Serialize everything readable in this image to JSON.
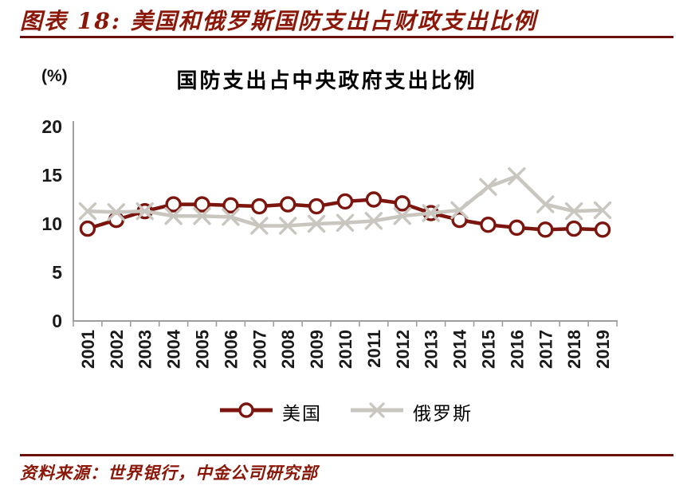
{
  "figure": {
    "caption": "图表 18: 美国和俄罗斯国防支出占财政支出比例",
    "source": "资料来源：世界银行，中金公司研究部"
  },
  "colors": {
    "accent_red": "#7c150e",
    "caption_red": "#8b1708",
    "rule_red": "#6b0f0b",
    "axis_gray": "#9e9e9e",
    "russia_gray": "#c9c6bf",
    "label_black": "#1a1a1a"
  },
  "chart_data": {
    "type": "line",
    "title": "国防支出占中央政府支出比例",
    "unit_label": "(%)",
    "xlabel": "",
    "ylabel": "(%)",
    "categories": [
      2001,
      2002,
      2003,
      2004,
      2005,
      2006,
      2007,
      2008,
      2009,
      2010,
      2011,
      2012,
      2013,
      2014,
      2015,
      2016,
      2017,
      2018,
      2019
    ],
    "ylim": [
      0,
      20
    ],
    "yticks": [
      0,
      5,
      10,
      15,
      20
    ],
    "grid": false,
    "legend_position": "bottom",
    "series": [
      {
        "name": "美国",
        "marker": "circle",
        "color": "#7c150e",
        "values": [
          9.5,
          10.4,
          11.3,
          12.0,
          12.0,
          11.9,
          11.8,
          12.0,
          11.8,
          12.3,
          12.5,
          12.1,
          11.1,
          10.4,
          9.9,
          9.6,
          9.4,
          9.5,
          9.4
        ]
      },
      {
        "name": "俄罗斯",
        "marker": "x",
        "color": "#c9c6bf",
        "values": [
          11.3,
          11.2,
          11.3,
          10.8,
          10.8,
          10.7,
          9.8,
          9.8,
          10.0,
          10.1,
          10.3,
          10.8,
          11.1,
          11.4,
          13.8,
          14.9,
          12.0,
          11.3,
          11.4
        ]
      }
    ]
  }
}
